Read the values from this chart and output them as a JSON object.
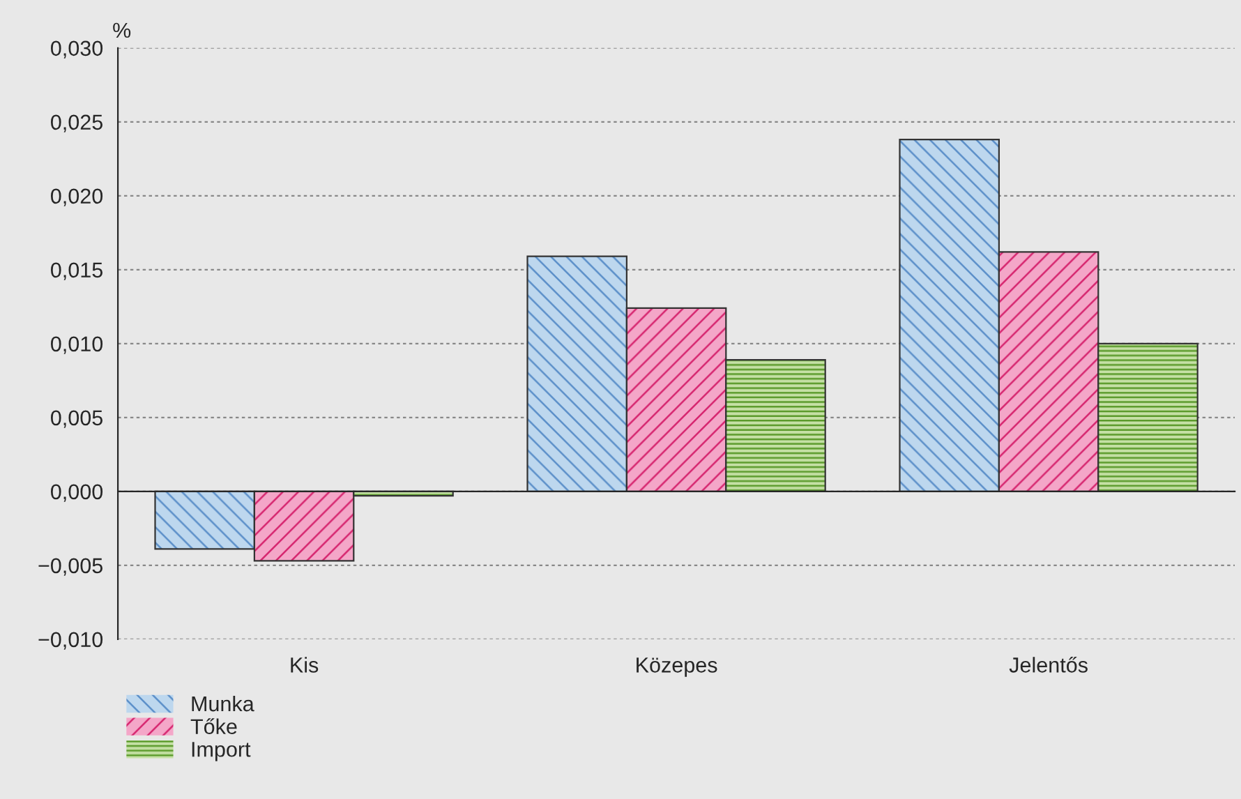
{
  "chart_data": {
    "type": "bar",
    "ylabel": "%",
    "categories": [
      "Kis",
      "Közepes",
      "Jelentős"
    ],
    "series": [
      {
        "name": "Munka",
        "color": "#bdd7ee",
        "values": [
          -0.0039,
          0.0159,
          0.0238
        ]
      },
      {
        "name": "Tőke",
        "color": "#f4a6c8",
        "values": [
          -0.0047,
          0.0124,
          0.0162
        ]
      },
      {
        "name": "Import",
        "color": "#c5e0a5",
        "values": [
          -0.0003,
          0.0089,
          0.01
        ]
      }
    ],
    "ylim": [
      -0.01,
      0.03
    ],
    "yticks": [
      {
        "value": -0.01,
        "label": "−0,010"
      },
      {
        "value": -0.005,
        "label": "−0,005"
      },
      {
        "value": 0,
        "label": "0,000"
      },
      {
        "value": 0.005,
        "label": "0,005"
      },
      {
        "value": 0.01,
        "label": "0,010"
      },
      {
        "value": 0.015,
        "label": "0,015"
      },
      {
        "value": 0.02,
        "label": "0,020"
      },
      {
        "value": 0.025,
        "label": "0,025"
      },
      {
        "value": 0.03,
        "label": "0,030"
      }
    ],
    "grid": "y",
    "legend": "bottom left"
  }
}
